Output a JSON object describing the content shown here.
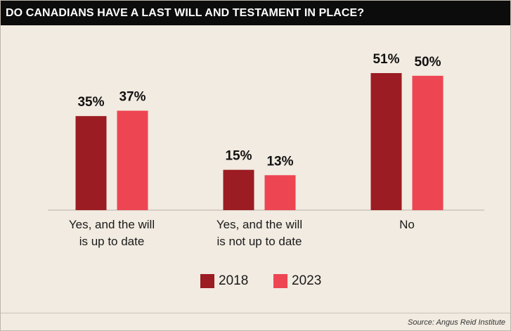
{
  "title": "DO CANADIANS HAVE A LAST WILL AND TESTAMENT IN PLACE?",
  "source": "Source: Angus Reid Institute",
  "colors": {
    "background": "#f2ebe1",
    "title_bar": "#0c0c0c",
    "series_2018": "#9b1c22",
    "series_2023": "#ee4552"
  },
  "legend": {
    "items": [
      {
        "label": "2018",
        "color": "#9b1c22"
      },
      {
        "label": "2023",
        "color": "#ee4552"
      }
    ]
  },
  "chart_data": {
    "type": "bar",
    "title": "DO CANADIANS HAVE A LAST WILL AND TESTAMENT IN PLACE?",
    "categories": [
      [
        "Yes, and the will",
        "is up to date"
      ],
      [
        "Yes, and the will",
        "is not up to date"
      ],
      [
        "No"
      ]
    ],
    "series": [
      {
        "name": "2018",
        "values": [
          35,
          15,
          51
        ],
        "labels": [
          "35%",
          "15%",
          "51%"
        ],
        "color": "#9b1c22"
      },
      {
        "name": "2023",
        "values": [
          37,
          13,
          50
        ],
        "labels": [
          "37%",
          "13%",
          "50%"
        ],
        "color": "#ee4552"
      }
    ],
    "ylim": [
      0,
      51
    ],
    "grid": false,
    "legend_position": "bottom-center",
    "unit": "%"
  }
}
